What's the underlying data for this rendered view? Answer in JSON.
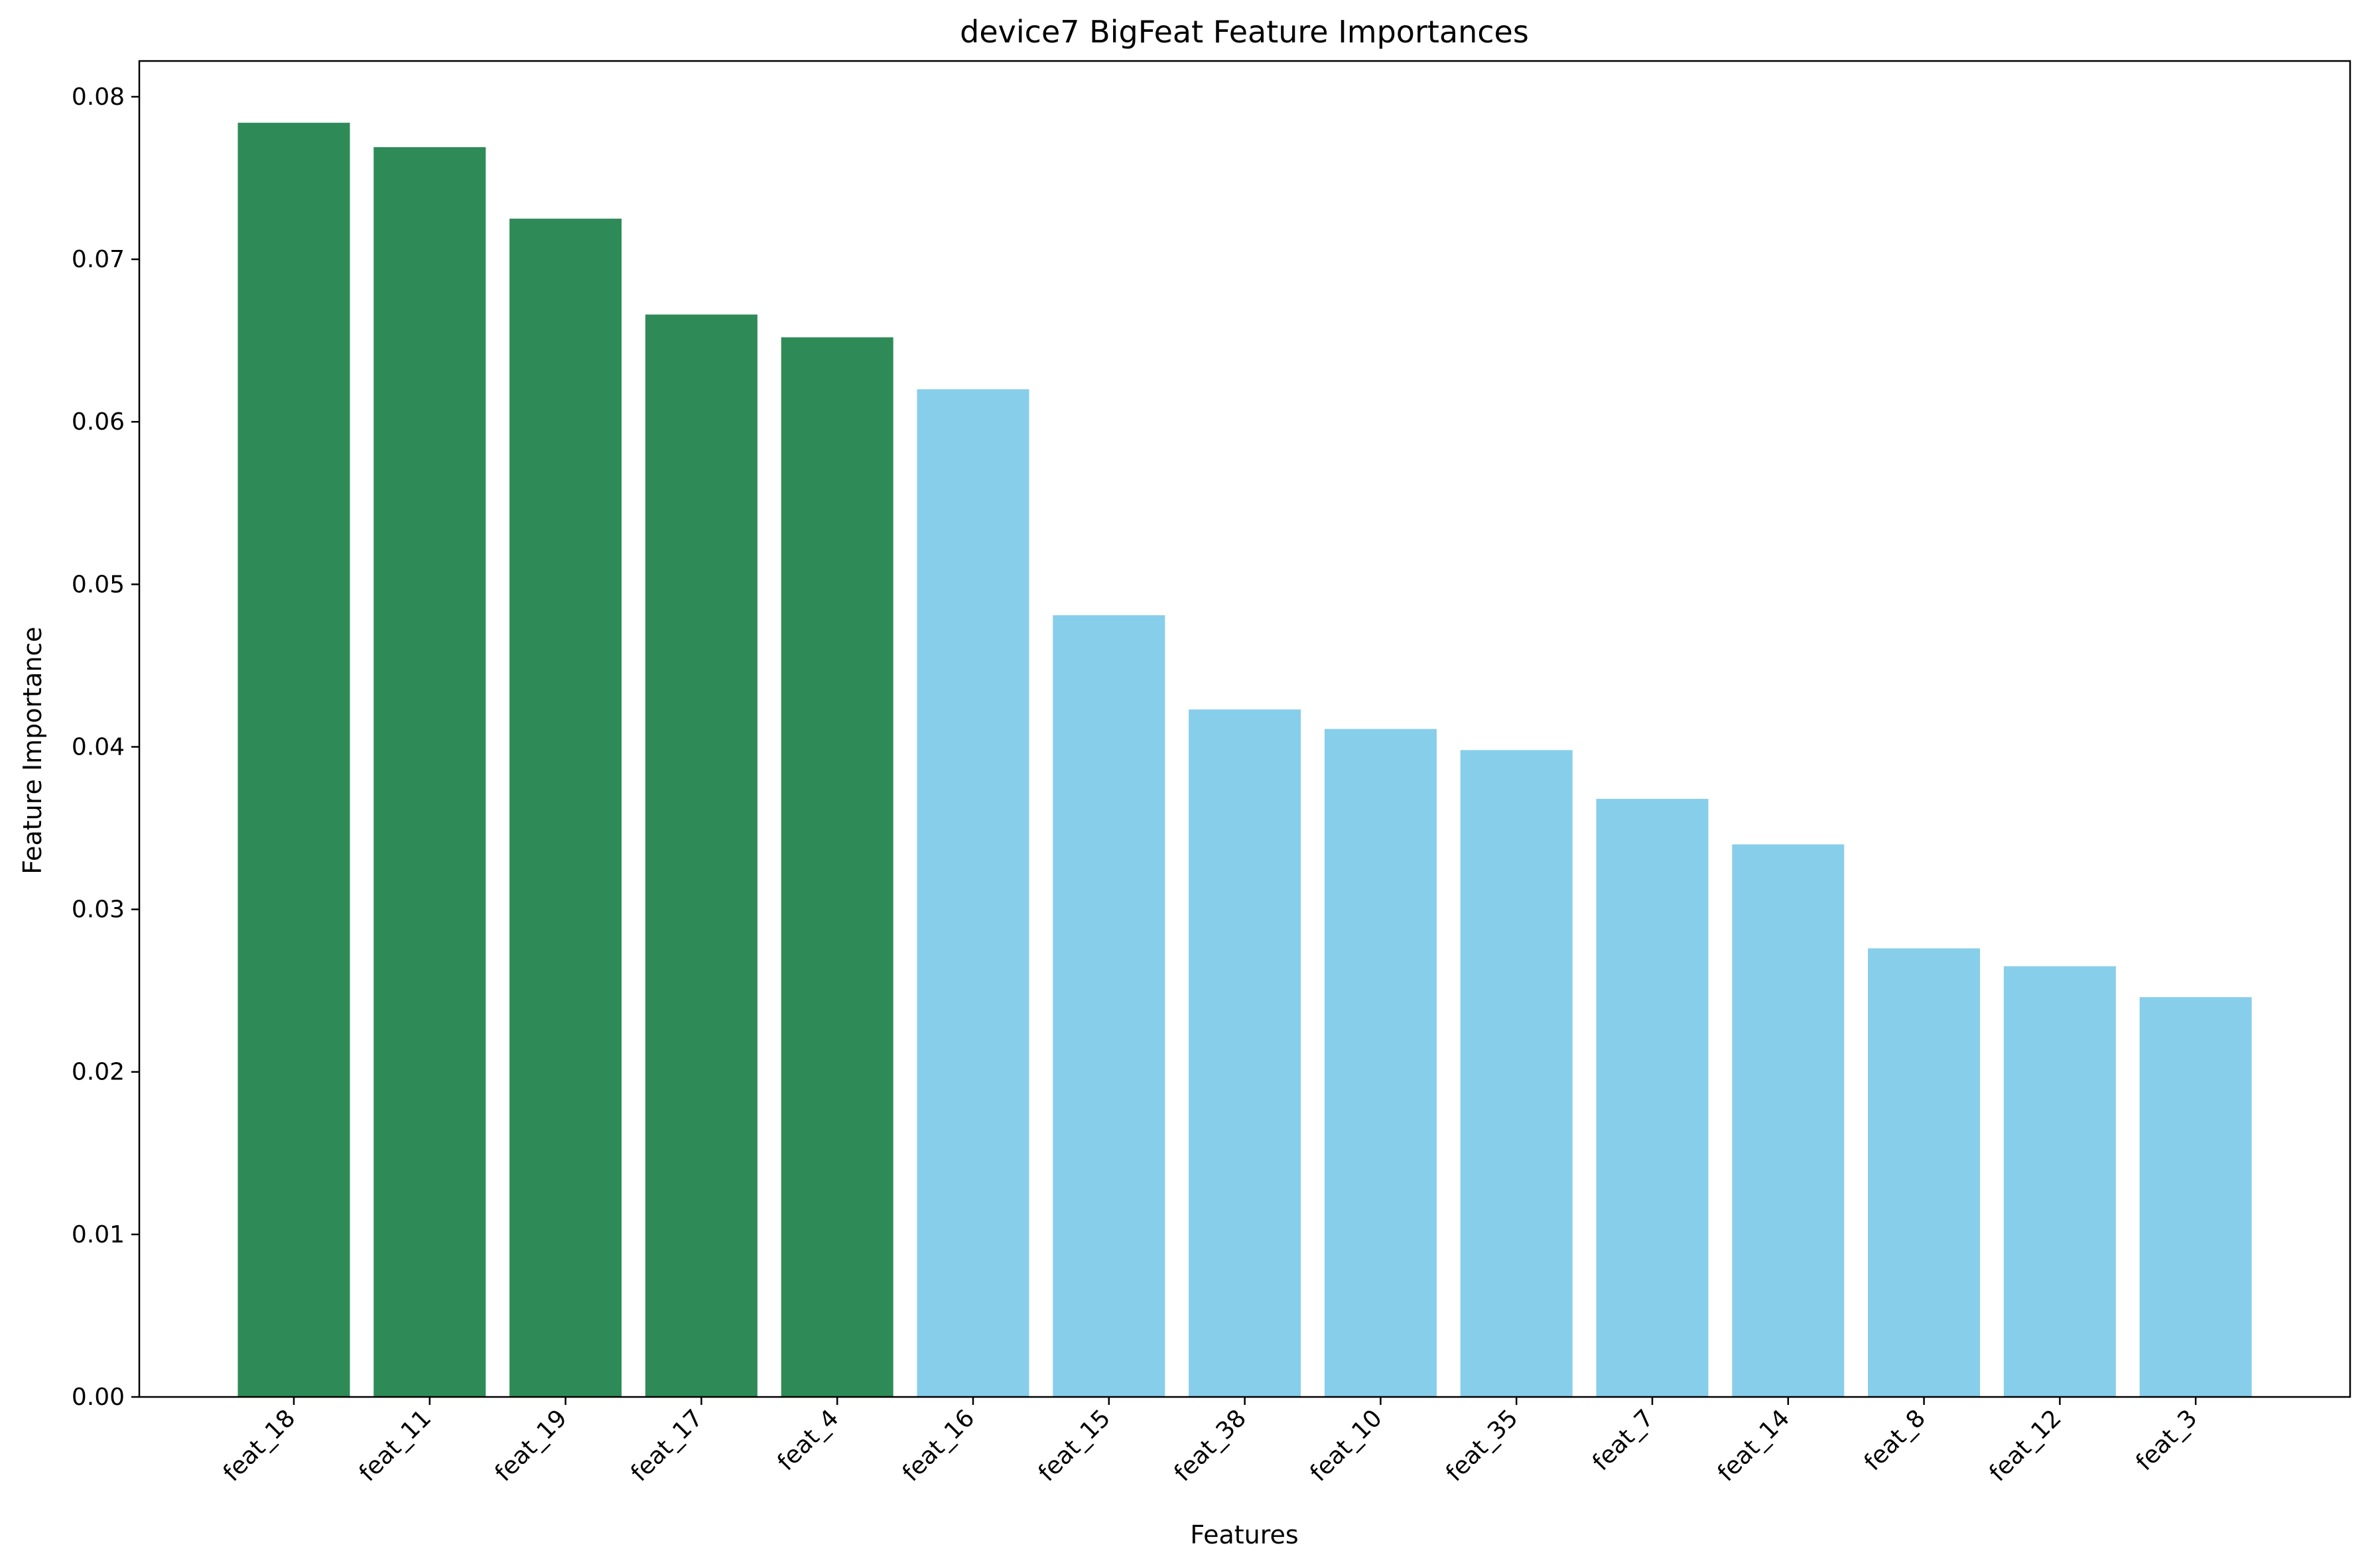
{
  "chart_data": {
    "type": "bar",
    "title": "device7 BigFeat Feature Importances",
    "xlabel": "Features",
    "ylabel": "Feature Importance",
    "ylim": [
      0,
      0.0822
    ],
    "yticks": [
      "0.00",
      "0.01",
      "0.02",
      "0.03",
      "0.04",
      "0.05",
      "0.06",
      "0.07",
      "0.08"
    ],
    "categories": [
      "feat_18",
      "feat_11",
      "feat_19",
      "feat_17",
      "feat_4",
      "feat_16",
      "feat_15",
      "feat_38",
      "feat_10",
      "feat_35",
      "feat_7",
      "feat_14",
      "feat_8",
      "feat_12",
      "feat_3"
    ],
    "values": [
      0.0784,
      0.0769,
      0.0725,
      0.0666,
      0.0652,
      0.062,
      0.0481,
      0.0423,
      0.0411,
      0.0398,
      0.0368,
      0.034,
      0.0276,
      0.0265,
      0.0246
    ],
    "top_k_highlighted": 5,
    "grid": false,
    "colors": {
      "highlight": "#2e8b57",
      "default": "#87ceeb",
      "axis": "#000000"
    }
  }
}
